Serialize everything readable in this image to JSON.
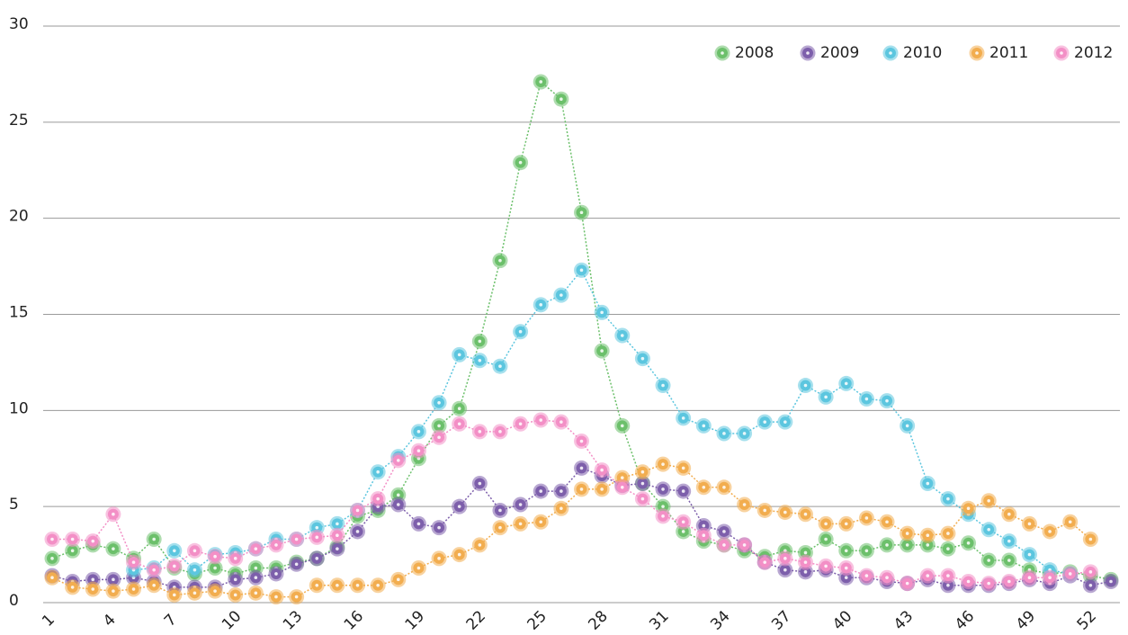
{
  "chart_data": {
    "type": "line",
    "categories": [
      1,
      null,
      null,
      4,
      null,
      null,
      7,
      null,
      null,
      10,
      null,
      null,
      13,
      null,
      null,
      16,
      null,
      null,
      19,
      null,
      null,
      22,
      null,
      null,
      25,
      null,
      null,
      28,
      null,
      null,
      31,
      null,
      null,
      34,
      null,
      null,
      37,
      null,
      null,
      40,
      null,
      null,
      43,
      null,
      null,
      46,
      null,
      null,
      49,
      null,
      null,
      52,
      null
    ],
    "ylim": [
      0,
      30
    ],
    "yticks": [
      0,
      5,
      10,
      15,
      20,
      25,
      30
    ],
    "grid": true,
    "legend": "top-right",
    "series": [
      {
        "name": "2008",
        "color": "#6cc06b",
        "values": [
          2.3,
          2.7,
          3.0,
          2.8,
          2.3,
          3.3,
          1.8,
          1.5,
          1.8,
          1.5,
          1.8,
          1.8,
          2.1,
          2.3,
          2.9,
          4.5,
          4.8,
          5.6,
          7.5,
          9.2,
          10.1,
          13.6,
          17.8,
          22.9,
          27.1,
          26.2,
          20.3,
          13.1,
          9.2,
          6.2,
          5.0,
          3.7,
          3.2,
          3.0,
          2.7,
          2.4,
          2.7,
          2.6,
          3.3,
          2.7,
          2.7,
          3.0,
          3.0,
          3.0,
          2.8,
          3.1,
          2.2,
          2.2,
          1.7,
          1.5,
          1.6,
          1.4,
          1.2
        ]
      },
      {
        "name": "2009",
        "color": "#7d5fab",
        "values": [
          1.4,
          1.1,
          1.2,
          1.2,
          1.3,
          1.1,
          0.8,
          0.8,
          0.8,
          1.2,
          1.3,
          1.5,
          2.0,
          2.3,
          2.8,
          3.7,
          5.0,
          5.1,
          4.1,
          3.9,
          5.0,
          6.2,
          4.8,
          5.1,
          5.8,
          5.8,
          7.0,
          6.6,
          6.1,
          6.2,
          5.9,
          5.8,
          4.0,
          3.7,
          3.0,
          2.1,
          1.7,
          1.6,
          1.7,
          1.3,
          1.3,
          1.1,
          1.0,
          1.2,
          0.9,
          0.9,
          0.9,
          1.0,
          1.2,
          1.0,
          1.4,
          0.9,
          1.1
        ]
      },
      {
        "name": "2010",
        "color": "#5cc6df",
        "values": [
          null,
          null,
          null,
          null,
          1.7,
          1.8,
          2.7,
          1.7,
          2.5,
          2.6,
          2.8,
          3.3,
          3.3,
          3.9,
          4.1,
          4.8,
          6.8,
          7.6,
          8.9,
          10.4,
          12.9,
          12.6,
          12.3,
          14.1,
          15.5,
          16.0,
          17.3,
          15.1,
          13.9,
          12.7,
          11.3,
          9.6,
          9.2,
          8.8,
          8.8,
          9.4,
          9.4,
          11.3,
          10.7,
          11.4,
          10.6,
          10.5,
          9.2,
          6.2,
          5.4,
          4.6,
          3.8,
          3.2,
          2.5,
          1.7,
          1.5,
          null,
          null
        ]
      },
      {
        "name": "2011",
        "color": "#f2ad4f",
        "values": [
          1.3,
          0.8,
          0.7,
          0.6,
          0.7,
          0.9,
          0.4,
          0.5,
          0.6,
          0.4,
          0.5,
          0.3,
          0.3,
          0.9,
          0.9,
          0.9,
          0.9,
          1.2,
          1.8,
          2.3,
          2.5,
          3.0,
          3.9,
          4.1,
          4.2,
          4.9,
          5.9,
          5.9,
          6.5,
          6.8,
          7.2,
          7.0,
          6.0,
          6.0,
          5.1,
          4.8,
          4.7,
          4.6,
          4.1,
          4.1,
          4.4,
          4.2,
          3.6,
          3.5,
          3.6,
          4.9,
          5.3,
          4.6,
          4.1,
          3.7,
          4.2,
          3.3,
          null
        ]
      },
      {
        "name": "2012",
        "color": "#f38fc6",
        "values": [
          3.3,
          3.3,
          3.2,
          4.6,
          2.1,
          1.7,
          1.9,
          2.7,
          2.4,
          2.3,
          2.8,
          3.0,
          3.3,
          3.4,
          3.5,
          4.8,
          5.4,
          7.4,
          7.9,
          8.6,
          9.3,
          8.9,
          8.9,
          9.3,
          9.5,
          9.4,
          8.4,
          6.9,
          6.0,
          5.4,
          4.5,
          4.2,
          3.5,
          3.0,
          3.0,
          2.1,
          2.3,
          2.1,
          1.9,
          1.8,
          1.4,
          1.3,
          1.0,
          1.4,
          1.4,
          1.1,
          1.0,
          1.1,
          1.3,
          1.3,
          1.5,
          1.6,
          null
        ]
      }
    ]
  }
}
